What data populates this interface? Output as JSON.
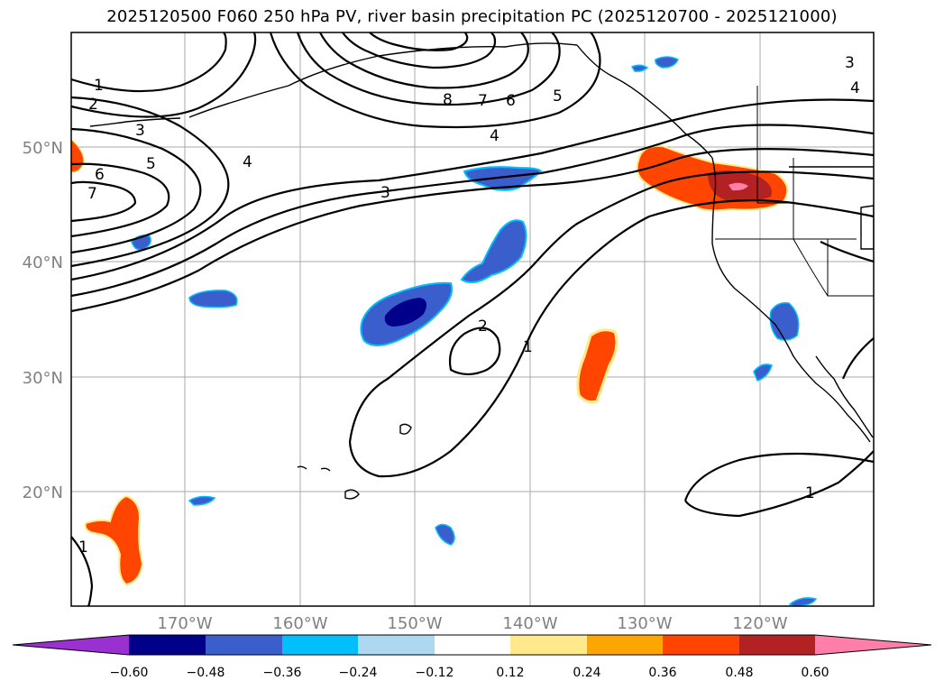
{
  "title": "2025120500 F060 250 hPa PV, river basin precipitation PC (2025120700 - 2025121000)",
  "lat_labels": [
    "50°N",
    "40°N",
    "30°N",
    "20°N"
  ],
  "lon_labels": [
    "170°W",
    "160°W",
    "150°W",
    "140°W",
    "130°W",
    "120°W"
  ],
  "contour_labels": [
    "1",
    "2",
    "3",
    "4",
    "5",
    "6",
    "7",
    "8",
    "5",
    "6",
    "7",
    "4",
    "3",
    "2",
    "1",
    "1",
    "1",
    "3",
    "4"
  ],
  "colorbar": {
    "ticks": [
      "−0.60",
      "−0.48",
      "−0.36",
      "−0.24",
      "−0.12",
      "0.12",
      "0.24",
      "0.36",
      "0.48",
      "0.60"
    ],
    "colors": [
      "#9b30d0",
      "#00008b",
      "#3a5fcd",
      "#00bfff",
      "#add8f2",
      "#ffffff",
      "#ffe98a",
      "#ffa500",
      "#ff4500",
      "#b22222",
      "#ff7fa8"
    ]
  }
}
